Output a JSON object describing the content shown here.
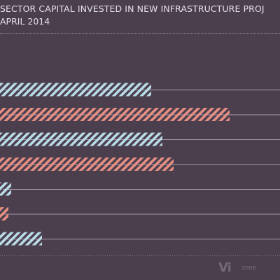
{
  "page": {
    "title": "SECTOR CAPITAL INVESTED IN NEW INFRASTRUCTURE PROJ",
    "subtitle": "APRIL 2014",
    "watermark_main": "Vi",
    "watermark_small": "zone"
  },
  "colors": {
    "background": "#4b3f4e",
    "series_blue": "#b9dce6",
    "series_salmon": "#e58f83",
    "gridline": "#a79bae",
    "text": "#e4e0e6"
  },
  "chart_data": {
    "type": "bar",
    "orientation": "horizontal",
    "title": "SECTOR CAPITAL INVESTED IN NEW INFRASTRUCTURE PROJ",
    "subtitle": "APRIL 2014",
    "pattern": "diagonal-hatch",
    "grid": true,
    "bars": [
      {
        "value": 54,
        "color": "blue"
      },
      {
        "value": 82,
        "color": "salmon"
      },
      {
        "value": 58,
        "color": "blue"
      },
      {
        "value": 62,
        "color": "salmon"
      },
      {
        "value": 4,
        "color": "blue"
      },
      {
        "value": 3,
        "color": "salmon"
      },
      {
        "value": 15,
        "color": "blue"
      }
    ],
    "xlim": [
      0,
      100
    ]
  }
}
